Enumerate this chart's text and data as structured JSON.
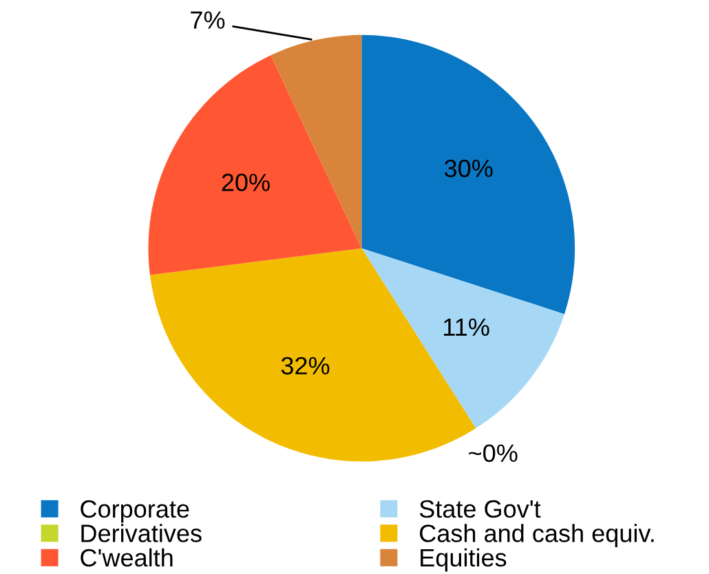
{
  "chart_data": {
    "type": "pie",
    "categories": [
      "Corporate",
      "State Gov't",
      "Derivatives",
      "Cash and cash equiv.",
      "C'wealth",
      "Equities"
    ],
    "values": [
      30,
      11,
      0,
      32,
      20,
      7
    ],
    "value_labels": [
      "30%",
      "11%",
      "~0%",
      "32%",
      "20%",
      "7%"
    ],
    "colors": [
      "#0a77c4",
      "#a6d8f5",
      "#c5d62d",
      "#f2bc00",
      "#ff5733",
      "#d9843b"
    ],
    "legend": "bottom"
  }
}
